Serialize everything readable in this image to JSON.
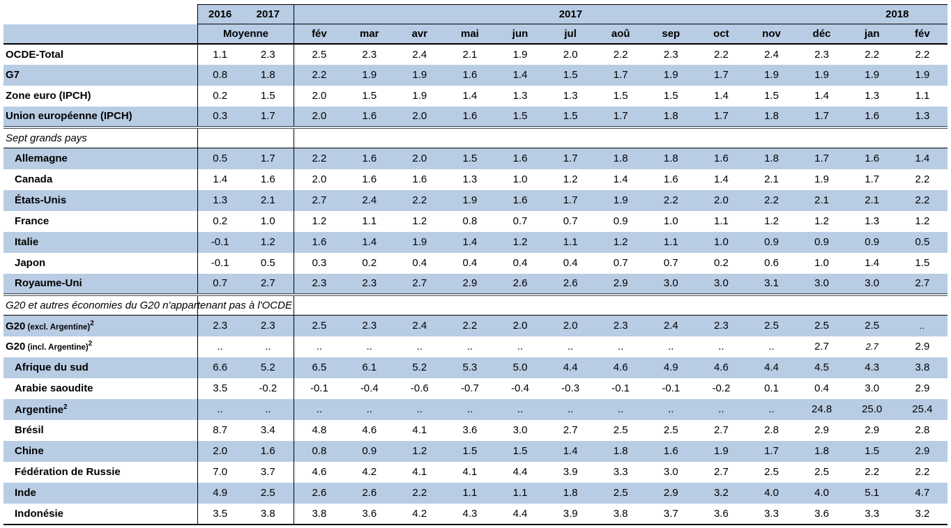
{
  "table": {
    "colors": {
      "row_blue": "#b8cce4",
      "border": "#000000",
      "section_sep": "#4d4d4d"
    },
    "header": {
      "avg_years": [
        "2016",
        "2017"
      ],
      "avg_label": "Moyenne",
      "band_2017": "2017",
      "band_2018": "2018",
      "months_2017": [
        "fév",
        "mar",
        "avr",
        "mai",
        "jun",
        "jul",
        "aoû",
        "sep",
        "oct",
        "nov",
        "déc"
      ],
      "months_2018": [
        "jan",
        "fév"
      ]
    },
    "rows": [
      {
        "type": "data",
        "label": "OCDE-Total",
        "avg": [
          "1.1",
          "2.3"
        ],
        "cells": [
          "2.5",
          "2.3",
          "2.4",
          "2.1",
          "1.9",
          "2.0",
          "2.2",
          "2.3",
          "2.2",
          "2.4",
          "2.3",
          "2.2",
          "2.2"
        ]
      },
      {
        "type": "data",
        "label": "G7",
        "avg": [
          "0.8",
          "1.8"
        ],
        "cells": [
          "2.2",
          "1.9",
          "1.9",
          "1.6",
          "1.4",
          "1.5",
          "1.7",
          "1.9",
          "1.7",
          "1.9",
          "1.9",
          "1.9",
          "1.9"
        ]
      },
      {
        "type": "data",
        "label": "Zone euro (IPCH)",
        "avg": [
          "0.2",
          "1.5"
        ],
        "cells": [
          "2.0",
          "1.5",
          "1.9",
          "1.4",
          "1.3",
          "1.3",
          "1.5",
          "1.5",
          "1.4",
          "1.5",
          "1.4",
          "1.3",
          "1.1"
        ]
      },
      {
        "type": "data",
        "label": "Union européenne (IPCH)",
        "avg": [
          "0.3",
          "1.7"
        ],
        "cells": [
          "2.0",
          "1.6",
          "2.0",
          "1.6",
          "1.5",
          "1.5",
          "1.7",
          "1.8",
          "1.7",
          "1.8",
          "1.7",
          "1.6",
          "1.3"
        ],
        "sep_below": true
      },
      {
        "type": "section",
        "label": "Sept grands pays"
      },
      {
        "type": "data",
        "label": "Allemagne",
        "indent": true,
        "avg": [
          "0.5",
          "1.7"
        ],
        "cells": [
          "2.2",
          "1.6",
          "2.0",
          "1.5",
          "1.6",
          "1.7",
          "1.8",
          "1.8",
          "1.6",
          "1.8",
          "1.7",
          "1.6",
          "1.4"
        ]
      },
      {
        "type": "data",
        "label": "Canada",
        "indent": true,
        "avg": [
          "1.4",
          "1.6"
        ],
        "cells": [
          "2.0",
          "1.6",
          "1.6",
          "1.3",
          "1.0",
          "1.2",
          "1.4",
          "1.6",
          "1.4",
          "2.1",
          "1.9",
          "1.7",
          "2.2"
        ]
      },
      {
        "type": "data",
        "label": "États-Unis",
        "indent": true,
        "avg": [
          "1.3",
          "2.1"
        ],
        "cells": [
          "2.7",
          "2.4",
          "2.2",
          "1.9",
          "1.6",
          "1.7",
          "1.9",
          "2.2",
          "2.0",
          "2.2",
          "2.1",
          "2.1",
          "2.2"
        ]
      },
      {
        "type": "data",
        "label": "France",
        "indent": true,
        "avg": [
          "0.2",
          "1.0"
        ],
        "cells": [
          "1.2",
          "1.1",
          "1.2",
          "0.8",
          "0.7",
          "0.7",
          "0.9",
          "1.0",
          "1.1",
          "1.2",
          "1.2",
          "1.3",
          "1.2"
        ]
      },
      {
        "type": "data",
        "label": "Italie",
        "indent": true,
        "avg": [
          "-0.1",
          "1.2"
        ],
        "cells": [
          "1.6",
          "1.4",
          "1.9",
          "1.4",
          "1.2",
          "1.1",
          "1.2",
          "1.1",
          "1.0",
          "0.9",
          "0.9",
          "0.9",
          "0.5"
        ]
      },
      {
        "type": "data",
        "label": "Japon",
        "indent": true,
        "avg": [
          "-0.1",
          "0.5"
        ],
        "cells": [
          "0.3",
          "0.2",
          "0.4",
          "0.4",
          "0.4",
          "0.4",
          "0.7",
          "0.7",
          "0.2",
          "0.6",
          "1.0",
          "1.4",
          "1.5"
        ]
      },
      {
        "type": "data",
        "label": "Royaume-Uni",
        "indent": true,
        "avg": [
          "0.7",
          "2.7"
        ],
        "cells": [
          "2.3",
          "2.3",
          "2.7",
          "2.9",
          "2.6",
          "2.6",
          "2.9",
          "3.0",
          "3.0",
          "3.1",
          "3.0",
          "3.0",
          "2.7"
        ],
        "sep_below": true
      },
      {
        "type": "section",
        "label": "G20 et autres économies du G20 n'appartenant pas à l'OCDE"
      },
      {
        "type": "data",
        "label": "G20",
        "label_small": " (excl. Argentine)",
        "sup": "2",
        "avg": [
          "2.3",
          "2.3"
        ],
        "cells": [
          "2.5",
          "2.3",
          "2.4",
          "2.2",
          "2.0",
          "2.0",
          "2.3",
          "2.4",
          "2.3",
          "2.5",
          "2.5",
          "2.5",
          {
            "v": "..",
            "em": true
          }
        ]
      },
      {
        "type": "data",
        "label": "G20",
        "label_small": " (incl. Argentine)",
        "sup": "2",
        "avg": [
          "..",
          ".."
        ],
        "cells": [
          "..",
          "..",
          "..",
          "..",
          "..",
          "..",
          "..",
          "..",
          "..",
          "..",
          "2.7",
          {
            "v": "2.7",
            "em": true
          },
          "2.9"
        ]
      },
      {
        "type": "data",
        "label": "Afrique du sud",
        "indent": true,
        "avg": [
          "6.6",
          "5.2"
        ],
        "cells": [
          "6.5",
          "6.1",
          "5.2",
          "5.3",
          "5.0",
          "4.4",
          "4.6",
          "4.9",
          "4.6",
          "4.4",
          "4.5",
          "4.3",
          "3.8"
        ]
      },
      {
        "type": "data",
        "label": "Arabie saoudite",
        "indent": true,
        "avg": [
          "3.5",
          "-0.2"
        ],
        "cells": [
          "-0.1",
          "-0.4",
          "-0.6",
          "-0.7",
          "-0.4",
          "-0.3",
          "-0.1",
          "-0.1",
          "-0.2",
          "0.1",
          "0.4",
          "3.0",
          "2.9"
        ]
      },
      {
        "type": "data",
        "label": "Argentine",
        "sup": "2",
        "indent": true,
        "avg": [
          "..",
          ".."
        ],
        "cells": [
          "..",
          "..",
          "..",
          "..",
          "..",
          "..",
          "..",
          "..",
          "..",
          "..",
          "24.8",
          "25.0",
          "25.4"
        ]
      },
      {
        "type": "data",
        "label": "Brésil",
        "indent": true,
        "avg": [
          "8.7",
          "3.4"
        ],
        "cells": [
          "4.8",
          "4.6",
          "4.1",
          "3.6",
          "3.0",
          "2.7",
          "2.5",
          "2.5",
          "2.7",
          "2.8",
          "2.9",
          "2.9",
          "2.8"
        ]
      },
      {
        "type": "data",
        "label": "Chine",
        "indent": true,
        "avg": [
          "2.0",
          "1.6"
        ],
        "cells": [
          "0.8",
          "0.9",
          "1.2",
          "1.5",
          "1.5",
          "1.4",
          "1.8",
          "1.6",
          "1.9",
          "1.7",
          "1.8",
          "1.5",
          "2.9"
        ]
      },
      {
        "type": "data",
        "label": "Fédération de Russie",
        "indent": true,
        "avg": [
          "7.0",
          "3.7"
        ],
        "cells": [
          "4.6",
          "4.2",
          "4.1",
          "4.1",
          "4.4",
          "3.9",
          "3.3",
          "3.0",
          "2.7",
          "2.5",
          "2.5",
          "2.2",
          "2.2"
        ]
      },
      {
        "type": "data",
        "label": "Inde",
        "indent": true,
        "avg": [
          "4.9",
          "2.5"
        ],
        "cells": [
          "2.6",
          "2.6",
          "2.2",
          "1.1",
          "1.1",
          "1.8",
          "2.5",
          "2.9",
          "3.2",
          "4.0",
          "4.0",
          "5.1",
          "4.7"
        ]
      },
      {
        "type": "data",
        "label": "Indonésie",
        "indent": true,
        "avg": [
          "3.5",
          "3.8"
        ],
        "cells": [
          "3.8",
          "3.6",
          "4.2",
          "4.3",
          "4.4",
          "3.9",
          "3.8",
          "3.7",
          "3.6",
          "3.3",
          "3.6",
          "3.3",
          "3.2"
        ]
      }
    ]
  }
}
